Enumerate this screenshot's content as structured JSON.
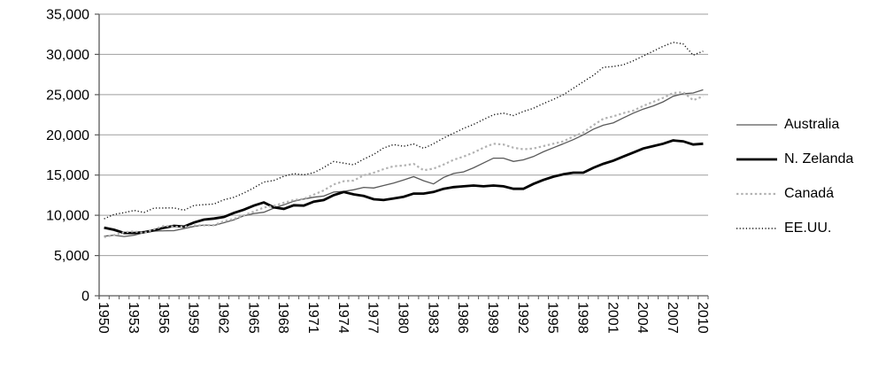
{
  "chart_data": {
    "type": "line",
    "title": "",
    "xlabel": "",
    "ylabel": "",
    "grid": "horizontal",
    "legend_position": "right",
    "ylim": [
      0,
      35000
    ],
    "y_ticks": [
      0,
      5000,
      10000,
      15000,
      20000,
      25000,
      30000,
      35000
    ],
    "y_tick_labels": [
      "0",
      "5,000",
      "10,000",
      "15,000",
      "20,000",
      "25,000",
      "30,000",
      "35,000"
    ],
    "x": [
      1950,
      1951,
      1952,
      1953,
      1954,
      1955,
      1956,
      1957,
      1958,
      1959,
      1960,
      1961,
      1962,
      1963,
      1964,
      1965,
      1966,
      1967,
      1968,
      1969,
      1970,
      1971,
      1972,
      1973,
      1974,
      1975,
      1976,
      1977,
      1978,
      1979,
      1980,
      1981,
      1982,
      1983,
      1984,
      1985,
      1986,
      1987,
      1988,
      1989,
      1990,
      1991,
      1992,
      1993,
      1994,
      1995,
      1996,
      1997,
      1998,
      1999,
      2000,
      2001,
      2002,
      2003,
      2004,
      2005,
      2006,
      2007,
      2008,
      2009,
      2010
    ],
    "x_label_every": 3,
    "x_tick_labels": [
      "1950",
      "1953",
      "1956",
      "1959",
      "1962",
      "1965",
      "1968",
      "1971",
      "1974",
      "1977",
      "1980",
      "1983",
      "1986",
      "1989",
      "1992",
      "1995",
      "1998",
      "2001",
      "2004",
      "2007",
      "2010"
    ],
    "series": [
      {
        "name": "Australia",
        "id": "australia",
        "color": "#595959",
        "style": "solid",
        "width": 1.3,
        "values": [
          7410,
          7530,
          7360,
          7530,
          7840,
          8040,
          8080,
          8090,
          8350,
          8620,
          8790,
          8740,
          9080,
          9430,
          9940,
          10230,
          10380,
          10900,
          11300,
          11760,
          12020,
          12250,
          12390,
          12890,
          12980,
          13170,
          13470,
          13400,
          13700,
          14000,
          14400,
          14800,
          14300,
          13900,
          14700,
          15200,
          15400,
          15900,
          16500,
          17100,
          17100,
          16700,
          16900,
          17300,
          17900,
          18400,
          18900,
          19400,
          20000,
          20700,
          21200,
          21500,
          22100,
          22700,
          23200,
          23600,
          24100,
          24800,
          25100,
          25200,
          25600
        ]
      },
      {
        "name": "N. Zelanda",
        "id": "n-zelanda",
        "color": "#000000",
        "style": "solid",
        "width": 2.8,
        "values": [
          8460,
          8200,
          7800,
          7800,
          7900,
          8150,
          8450,
          8700,
          8600,
          9100,
          9460,
          9600,
          9800,
          10300,
          10700,
          11200,
          11600,
          11000,
          10800,
          11250,
          11200,
          11700,
          11900,
          12500,
          12900,
          12600,
          12400,
          12000,
          11900,
          12100,
          12300,
          12700,
          12700,
          12900,
          13300,
          13500,
          13600,
          13700,
          13600,
          13700,
          13600,
          13300,
          13300,
          13900,
          14400,
          14800,
          15100,
          15300,
          15300,
          15900,
          16400,
          16800,
          17300,
          17800,
          18300,
          18600,
          18900,
          19300,
          19200,
          18800,
          18900
        ]
      },
      {
        "name": "Canadá",
        "id": "canada",
        "color": "#b2b2b2",
        "style": "dotted",
        "width": 2.2,
        "values": [
          7290,
          7550,
          7900,
          8000,
          7800,
          8250,
          8700,
          8600,
          8550,
          8750,
          8750,
          8790,
          9250,
          9560,
          10000,
          10470,
          10970,
          11160,
          11570,
          11900,
          12050,
          12570,
          13100,
          13840,
          14240,
          14320,
          14980,
          15290,
          15740,
          16100,
          16180,
          16400,
          15600,
          15800,
          16300,
          16900,
          17300,
          17800,
          18400,
          18900,
          18800,
          18400,
          18200,
          18300,
          18600,
          18900,
          19200,
          19800,
          20300,
          21200,
          22000,
          22300,
          22700,
          23000,
          23600,
          24100,
          24600,
          25200,
          25300,
          24300,
          24800
        ]
      },
      {
        "name": "EE.UU.",
        "id": "ee-uu",
        "color": "#111111",
        "style": "fine-dotted",
        "width": 1.4,
        "values": [
          9560,
          10120,
          10320,
          10610,
          10360,
          10900,
          10910,
          10920,
          10630,
          11230,
          11330,
          11400,
          11930,
          12240,
          12770,
          13420,
          14130,
          14330,
          14860,
          15180,
          15030,
          15300,
          15940,
          16690,
          16490,
          16280,
          16980,
          17570,
          18370,
          18790,
          18580,
          18860,
          18330,
          18900,
          19600,
          20200,
          20800,
          21300,
          21900,
          22500,
          22700,
          22400,
          22900,
          23300,
          23900,
          24400,
          25000,
          25800,
          26600,
          27400,
          28400,
          28500,
          28700,
          29200,
          29800,
          30400,
          31000,
          31500,
          31300,
          29900,
          30400
        ]
      }
    ],
    "colors": {
      "gridline": "#9e9e9e",
      "axis": "#595959",
      "label": "#000000",
      "background": "#ffffff"
    }
  }
}
